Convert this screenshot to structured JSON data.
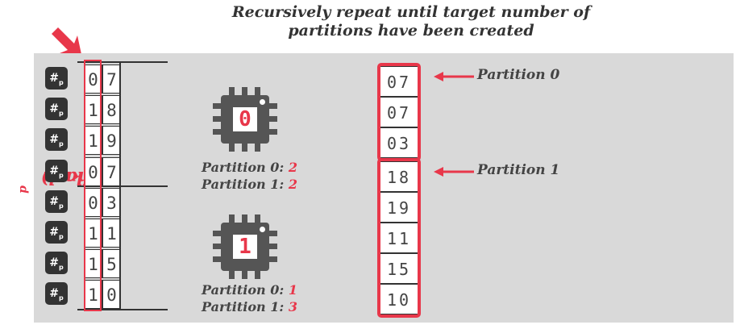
{
  "title_line1": "Recursively repeat until target number of",
  "title_line2": "partitions have been created",
  "side_label_main": "hash",
  "side_label_sub": "p",
  "side_label_tail": "(key)",
  "hash_badge": {
    "symbol": "#",
    "sub": "p"
  },
  "input_keys": [
    [
      "0",
      "7"
    ],
    [
      "1",
      "8"
    ],
    [
      "1",
      "9"
    ],
    [
      "0",
      "7"
    ],
    [
      "0",
      "3"
    ],
    [
      "1",
      "1"
    ],
    [
      "1",
      "5"
    ],
    [
      "1",
      "0"
    ]
  ],
  "workers": [
    {
      "id": "0",
      "counts": [
        {
          "label": "Partition 0:",
          "value": "2"
        },
        {
          "label": "Partition 1:",
          "value": "2"
        }
      ]
    },
    {
      "id": "1",
      "counts": [
        {
          "label": "Partition 0:",
          "value": "1"
        },
        {
          "label": "Partition 1:",
          "value": "3"
        }
      ]
    }
  ],
  "output": [
    {
      "label": "Partition 0",
      "values": [
        "07",
        "07",
        "03"
      ]
    },
    {
      "label": "Partition 1",
      "values": [
        "18",
        "19",
        "11",
        "15",
        "10"
      ]
    }
  ],
  "colors": {
    "accent": "#e8374a",
    "dark": "#333333",
    "panel": "#d9d9d9"
  }
}
